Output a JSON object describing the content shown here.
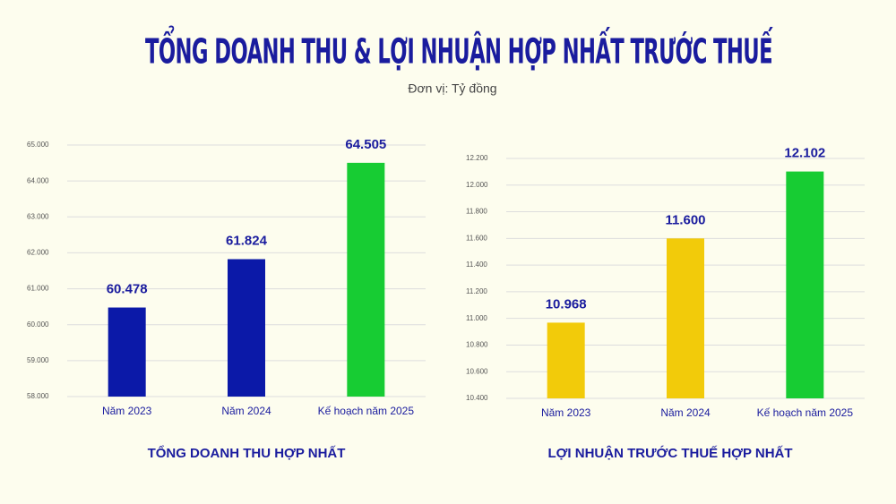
{
  "title": "TỔNG DOANH THU & LỢI NHUẬN HỢP NHẤT TRƯỚC THUẾ",
  "subtitle": "Đơn vị: Tỷ đồng",
  "chart_data": [
    {
      "type": "bar",
      "title": "TỔNG DOANH THU HỢP NHẤT",
      "categories": [
        "Năm 2023",
        "Năm 2024",
        "Kế hoạch năm 2025"
      ],
      "values": [
        60478,
        61824,
        64505
      ],
      "value_labels": [
        "60.478",
        "61.824",
        "64.505"
      ],
      "colors": [
        "#0b19a8",
        "#0b19a8",
        "#17cc33"
      ],
      "ylim": [
        58000,
        65000
      ],
      "yticks": [
        {
          "value": 58000,
          "label": "58.000"
        },
        {
          "value": 59000,
          "label": "59.000"
        },
        {
          "value": 60000,
          "label": "60.000"
        },
        {
          "value": 61000,
          "label": "61.000"
        },
        {
          "value": 62000,
          "label": "62.000"
        },
        {
          "value": 63000,
          "label": "63.000"
        },
        {
          "value": 64000,
          "label": "64.000"
        },
        {
          "value": 65000,
          "label": "65.000"
        }
      ],
      "grid": true
    },
    {
      "type": "bar",
      "title": "LỢI NHUẬN TRƯỚC THUẾ HỢP NHẤT",
      "categories": [
        "Năm 2023",
        "Năm 2024",
        "Kế hoạch năm 2025"
      ],
      "values": [
        10968,
        11600,
        12102
      ],
      "value_labels": [
        "10.968",
        "11.600",
        "12.102"
      ],
      "colors": [
        "#f2cb0a",
        "#f2cb0a",
        "#17cc33"
      ],
      "ylim": [
        10400,
        12200
      ],
      "yticks": [
        {
          "value": 10400,
          "label": "10.400"
        },
        {
          "value": 10600,
          "label": "10.600"
        },
        {
          "value": 10800,
          "label": "10.800"
        },
        {
          "value": 11000,
          "label": "11.000"
        },
        {
          "value": 11200,
          "label": "11.200"
        },
        {
          "value": 11400,
          "label": "11.400"
        },
        {
          "value": 11600,
          "label": "11.600"
        },
        {
          "value": 11800,
          "label": "11.800"
        },
        {
          "value": 12000,
          "label": "12.000"
        },
        {
          "value": 12200,
          "label": "12.200"
        }
      ],
      "grid": true
    }
  ]
}
